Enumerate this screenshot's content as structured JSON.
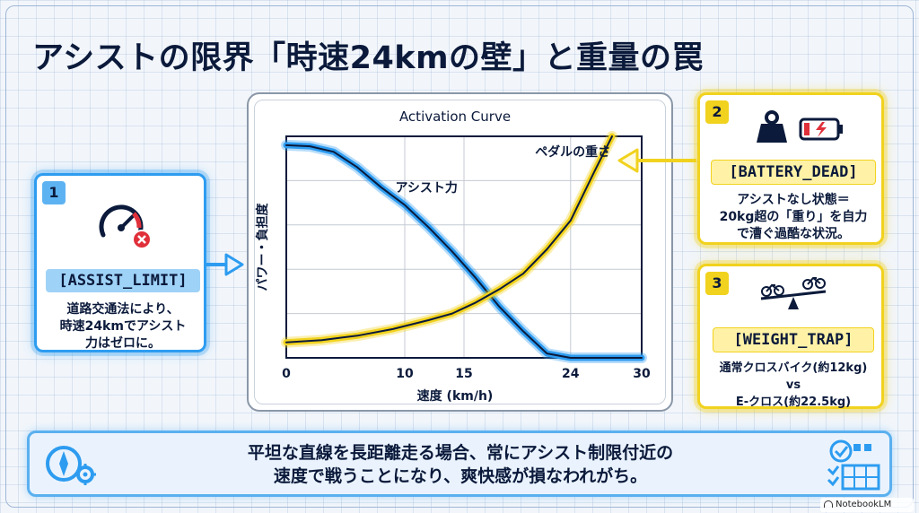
{
  "title": "アシストの限界「時速24kmの壁」と重量の罠",
  "colors": {
    "blue": "#2d9cf0",
    "yellow": "#f1d21e",
    "navy": "#0b1a3b"
  },
  "cards": [
    {
      "number": "1",
      "tag": "[ASSIST_LIMIT]",
      "lines": [
        "道路交通法により、",
        "時速24kmでアシスト",
        "力はゼロに。"
      ],
      "icons": [
        "speedometer-icon",
        "x-circle-icon"
      ]
    },
    {
      "number": "2",
      "tag": "[BATTERY_DEAD]",
      "lines": [
        "アシストなし状態＝",
        "20kg超の「重り」を自力",
        "で漕ぐ過酷な状況。"
      ],
      "icons": [
        "weight-icon",
        "empty-battery-icon"
      ]
    },
    {
      "number": "3",
      "tag": "[WEIGHT_TRAP]",
      "lines": [
        "通常クロスバイク(約12kg)",
        "vs",
        "E-クロス(約22.5kg)"
      ],
      "icons": [
        "bicycle-scale-icon"
      ]
    }
  ],
  "banner": {
    "lines": [
      "平坦な直線を長距離走る場合、常にアシスト制限付近の",
      "速度で戦うことになり、爽快感が損なわれがち。"
    ],
    "icons": [
      "compass-gear-icon",
      "checklist-grid-icon"
    ]
  },
  "chart_data": {
    "type": "line",
    "title": "Activation Curve",
    "xlabel": "速度 (km/h)",
    "ylabel": "パワー・負担度",
    "x_ticks": [
      0,
      10,
      15,
      24,
      30
    ],
    "xlim": [
      0,
      30
    ],
    "ylim": [
      0,
      100
    ],
    "grid": true,
    "y_tick_labels_shown": false,
    "series": [
      {
        "name": "アシスト力",
        "color": "#2d9cf0",
        "points": [
          [
            0,
            96
          ],
          [
            2,
            95.5
          ],
          [
            4,
            93
          ],
          [
            6,
            86
          ],
          [
            8,
            77
          ],
          [
            10,
            69
          ],
          [
            12,
            59
          ],
          [
            14,
            48
          ],
          [
            16,
            36
          ],
          [
            18,
            23
          ],
          [
            20,
            12
          ],
          [
            22,
            2
          ],
          [
            24,
            0
          ],
          [
            26,
            0
          ],
          [
            28,
            0
          ],
          [
            30,
            0
          ]
        ]
      },
      {
        "name": "ペダルの重さ",
        "color": "#f1d21e",
        "points": [
          [
            0,
            7
          ],
          [
            3,
            8
          ],
          [
            6,
            10
          ],
          [
            9,
            13
          ],
          [
            12,
            17
          ],
          [
            14,
            20
          ],
          [
            16,
            25
          ],
          [
            18,
            31
          ],
          [
            20,
            38
          ],
          [
            22,
            49
          ],
          [
            24,
            62
          ],
          [
            26,
            84
          ],
          [
            27.5,
            100
          ]
        ]
      }
    ]
  },
  "footer": {
    "brand": "NotebookLM"
  }
}
